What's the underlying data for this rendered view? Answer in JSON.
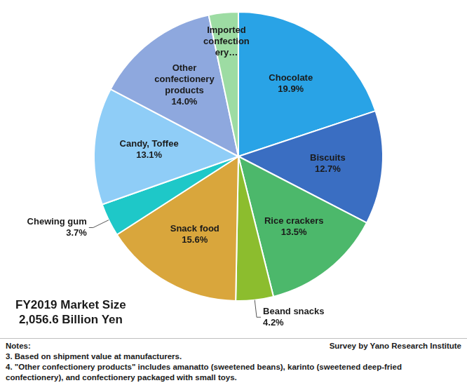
{
  "chart_data": {
    "type": "pie",
    "title": "FY2019 Market Size",
    "subtitle": "2,056.6 Billion Yen",
    "categories": [
      "Chocolate",
      "Biscuits",
      "Rice crackers",
      "Beand snacks",
      "Snack food",
      "Chewing gum",
      "Candy, Toffee",
      "Other confectionery products",
      "Imported confectionery…"
    ],
    "values": [
      19.9,
      12.7,
      13.5,
      4.2,
      15.6,
      3.7,
      13.1,
      14.0,
      3.3
    ],
    "value_labels": [
      "19.9%",
      "12.7%",
      "13.5%",
      "4.2%",
      "15.6%",
      "3.7%",
      "13.1%",
      "14.0%",
      null
    ],
    "colors": [
      "#29a3e6",
      "#3a6ec2",
      "#4cb86b",
      "#8cbd2e",
      "#d9a63c",
      "#1ec8c8",
      "#8fcdf7",
      "#8ea8de",
      "#9ddca3"
    ],
    "data_labels": true,
    "notes": [
      "Notes:",
      "3. Based on shipment value at manufacturers.",
      "4. \"Other confectionery products\" includes amanatto (sweetened beans), karinto (sweetened deep-fried confectionery), and confectionery packaged with small toys."
    ],
    "source": "Survey by Yano Research Institute"
  }
}
